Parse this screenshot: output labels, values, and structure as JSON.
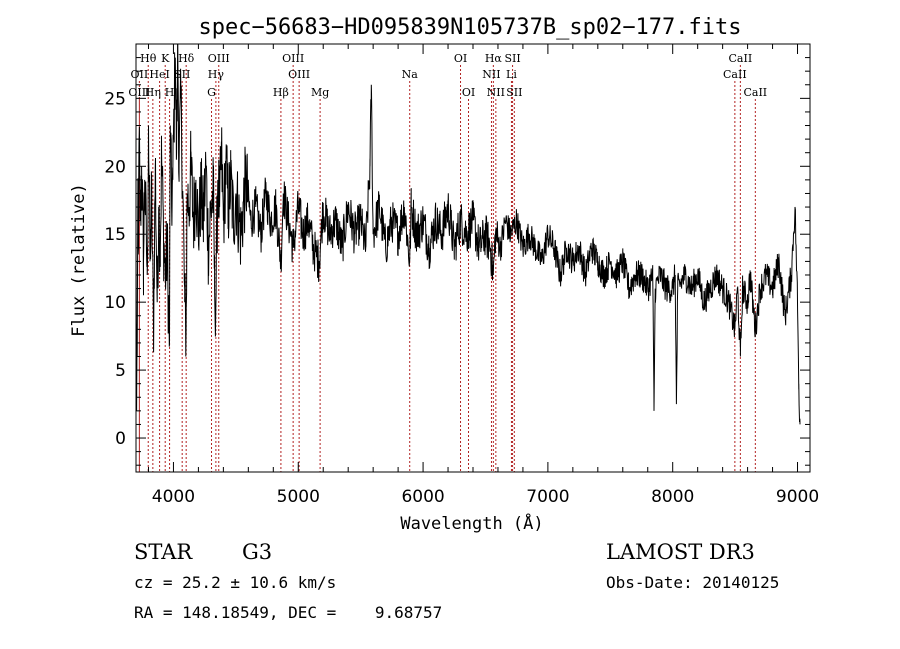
{
  "chart_data": {
    "type": "line",
    "title": "spec−56683−HD095839N105737B_sp02−177.fits",
    "xlabel": "Wavelength (Å)",
    "ylabel": "Flux (relative)",
    "xlim": [
      3700,
      9100
    ],
    "ylim": [
      -2.5,
      29
    ],
    "x_ticks": [
      4000,
      5000,
      6000,
      7000,
      8000,
      9000
    ],
    "y_ticks": [
      0,
      5,
      10,
      15,
      20,
      25
    ],
    "series": [
      {
        "name": "flux",
        "anchors": [
          [
            3700,
            15
          ],
          [
            3705,
            2
          ],
          [
            3710,
            6
          ],
          [
            3715,
            18
          ],
          [
            3720,
            14
          ],
          [
            3725,
            22
          ],
          [
            3735,
            16
          ],
          [
            3745,
            20
          ],
          [
            3760,
            13
          ],
          [
            3770,
            19
          ],
          [
            3790,
            12
          ],
          [
            3800,
            23
          ],
          [
            3812,
            13
          ],
          [
            3825,
            18
          ],
          [
            3840,
            8
          ],
          [
            3855,
            20
          ],
          [
            3870,
            10
          ],
          [
            3882,
            17
          ],
          [
            3895,
            14
          ],
          [
            3905,
            21
          ],
          [
            3920,
            15
          ],
          [
            3935,
            12
          ],
          [
            3950,
            14
          ],
          [
            3960,
            10
          ],
          [
            3968,
            7
          ],
          [
            3975,
            23
          ],
          [
            3985,
            17
          ],
          [
            3995,
            19
          ],
          [
            4005,
            24
          ],
          [
            4015,
            28
          ],
          [
            4025,
            21
          ],
          [
            4035,
            29
          ],
          [
            4045,
            20
          ],
          [
            4060,
            25
          ],
          [
            4075,
            18
          ],
          [
            4090,
            10
          ],
          [
            4101,
            8
          ],
          [
            4110,
            18
          ],
          [
            4125,
            17
          ],
          [
            4140,
            20
          ],
          [
            4160,
            16
          ],
          [
            4180,
            19
          ],
          [
            4200,
            15
          ],
          [
            4220,
            18
          ],
          [
            4240,
            16
          ],
          [
            4260,
            20
          ],
          [
            4280,
            14
          ],
          [
            4300,
            17
          ],
          [
            4320,
            18
          ],
          [
            4330,
            11
          ],
          [
            4340,
            10
          ],
          [
            4355,
            19
          ],
          [
            4370,
            17
          ],
          [
            4385,
            21
          ],
          [
            4400,
            16
          ],
          [
            4420,
            20
          ],
          [
            4440,
            17
          ],
          [
            4460,
            19
          ],
          [
            4480,
            16
          ],
          [
            4500,
            18
          ],
          [
            4540,
            15
          ],
          [
            4580,
            19
          ],
          [
            4620,
            16
          ],
          [
            4660,
            17
          ],
          [
            4700,
            15
          ],
          [
            4740,
            18
          ],
          [
            4780,
            16
          ],
          [
            4820,
            17
          ],
          [
            4861,
            13
          ],
          [
            4880,
            18
          ],
          [
            4920,
            16
          ],
          [
            4960,
            14
          ],
          [
            5000,
            17
          ],
          [
            5040,
            15
          ],
          [
            5080,
            16
          ],
          [
            5120,
            14
          ],
          [
            5167,
            13
          ],
          [
            5200,
            17
          ],
          [
            5250,
            15
          ],
          [
            5300,
            16
          ],
          [
            5350,
            14
          ],
          [
            5400,
            17
          ],
          [
            5450,
            15
          ],
          [
            5500,
            16
          ],
          [
            5540,
            14
          ],
          [
            5575,
            20
          ],
          [
            5585,
            26
          ],
          [
            5600,
            15
          ],
          [
            5650,
            17
          ],
          [
            5700,
            14
          ],
          [
            5750,
            16
          ],
          [
            5800,
            15
          ],
          [
            5850,
            17
          ],
          [
            5893,
            13
          ],
          [
            5905,
            17
          ],
          [
            5950,
            15
          ],
          [
            6000,
            16
          ],
          [
            6050,
            14
          ],
          [
            6100,
            16
          ],
          [
            6150,
            15
          ],
          [
            6200,
            17
          ],
          [
            6250,
            14
          ],
          [
            6300,
            16
          ],
          [
            6350,
            15
          ],
          [
            6400,
            16
          ],
          [
            6450,
            14
          ],
          [
            6500,
            15
          ],
          [
            6540,
            14
          ],
          [
            6563,
            12
          ],
          [
            6580,
            15
          ],
          [
            6620,
            14
          ],
          [
            6660,
            16
          ],
          [
            6700,
            15
          ],
          [
            6750,
            16
          ],
          [
            6800,
            14
          ],
          [
            6850,
            15
          ],
          [
            6900,
            14
          ],
          [
            6950,
            13
          ],
          [
            7000,
            15
          ],
          [
            7050,
            14
          ],
          [
            7100,
            12
          ],
          [
            7150,
            14
          ],
          [
            7200,
            13
          ],
          [
            7250,
            14
          ],
          [
            7300,
            12
          ],
          [
            7350,
            14
          ],
          [
            7400,
            13
          ],
          [
            7450,
            12
          ],
          [
            7500,
            13
          ],
          [
            7550,
            12
          ],
          [
            7600,
            13
          ],
          [
            7650,
            11
          ],
          [
            7700,
            12
          ],
          [
            7750,
            12
          ],
          [
            7800,
            11
          ],
          [
            7840,
            12
          ],
          [
            7850,
            2
          ],
          [
            7860,
            11
          ],
          [
            7900,
            12
          ],
          [
            7950,
            11
          ],
          [
            8000,
            11
          ],
          [
            8020,
            12
          ],
          [
            8030,
            2.5
          ],
          [
            8040,
            11
          ],
          [
            8100,
            12
          ],
          [
            8150,
            11
          ],
          [
            8200,
            12
          ],
          [
            8250,
            10
          ],
          [
            8300,
            11
          ],
          [
            8350,
            12
          ],
          [
            8400,
            11
          ],
          [
            8450,
            10
          ],
          [
            8498,
            8
          ],
          [
            8520,
            11
          ],
          [
            8542,
            6
          ],
          [
            8560,
            11
          ],
          [
            8600,
            10
          ],
          [
            8620,
            12
          ],
          [
            8662,
            8
          ],
          [
            8700,
            11
          ],
          [
            8750,
            12
          ],
          [
            8800,
            11
          ],
          [
            8850,
            13
          ],
          [
            8900,
            9
          ],
          [
            8950,
            12
          ],
          [
            8980,
            17
          ],
          [
            9000,
            10
          ],
          [
            9010,
            4
          ],
          [
            9020,
            1
          ]
        ]
      }
    ],
    "line_markers": [
      {
        "label": "Hθ",
        "wavelength": 3798,
        "row": 0
      },
      {
        "label": "OII",
        "wavelength": 3727,
        "row": 1
      },
      {
        "label": "OIII",
        "wavelength": 3727,
        "row": 2
      },
      {
        "label": "K",
        "wavelength": 3934,
        "row": 0
      },
      {
        "label": "HeI",
        "wavelength": 3889,
        "row": 1
      },
      {
        "label": "Hη",
        "wavelength": 3835,
        "row": 2
      },
      {
        "label": "Hδ",
        "wavelength": 4102,
        "row": 0
      },
      {
        "label": "SII",
        "wavelength": 4070,
        "row": 1
      },
      {
        "label": "H",
        "wavelength": 3969,
        "row": 2
      },
      {
        "label": "OIII",
        "wavelength": 4363,
        "row": 0
      },
      {
        "label": "Hγ",
        "wavelength": 4340,
        "row": 1
      },
      {
        "label": "G",
        "wavelength": 4305,
        "row": 2
      },
      {
        "label": "Hβ",
        "wavelength": 4861,
        "row": 2
      },
      {
        "label": "OIII",
        "wavelength": 4959,
        "row": 0
      },
      {
        "label": "OIII",
        "wavelength": 5007,
        "row": 1
      },
      {
        "label": "Mg",
        "wavelength": 5175,
        "row": 2
      },
      {
        "label": "Na",
        "wavelength": 5893,
        "row": 1
      },
      {
        "label": "OI",
        "wavelength": 6300,
        "row": 0
      },
      {
        "label": "OI",
        "wavelength": 6364,
        "row": 2
      },
      {
        "label": "Hα",
        "wavelength": 6563,
        "row": 0
      },
      {
        "label": "NII",
        "wavelength": 6548,
        "row": 1
      },
      {
        "label": "NII",
        "wavelength": 6583,
        "row": 2
      },
      {
        "label": "SII",
        "wavelength": 6717,
        "row": 0
      },
      {
        "label": "Li",
        "wavelength": 6708,
        "row": 1
      },
      {
        "label": "SII",
        "wavelength": 6731,
        "row": 2
      },
      {
        "label": "CaII",
        "wavelength": 8542,
        "row": 0
      },
      {
        "label": "CaII",
        "wavelength": 8498,
        "row": 1
      },
      {
        "label": "CaII",
        "wavelength": 8662,
        "row": 2
      }
    ],
    "marker_color": "#b22222",
    "line_color": "#000000"
  },
  "info": {
    "class": "STAR",
    "subclass": "G3",
    "survey": "LAMOST DR3",
    "cz": "cz = 25.2 ± 10.6 km/s",
    "obs_date": "Obs-Date: 20140125",
    "radec": "RA = 148.18549, DEC =    9.68757"
  }
}
